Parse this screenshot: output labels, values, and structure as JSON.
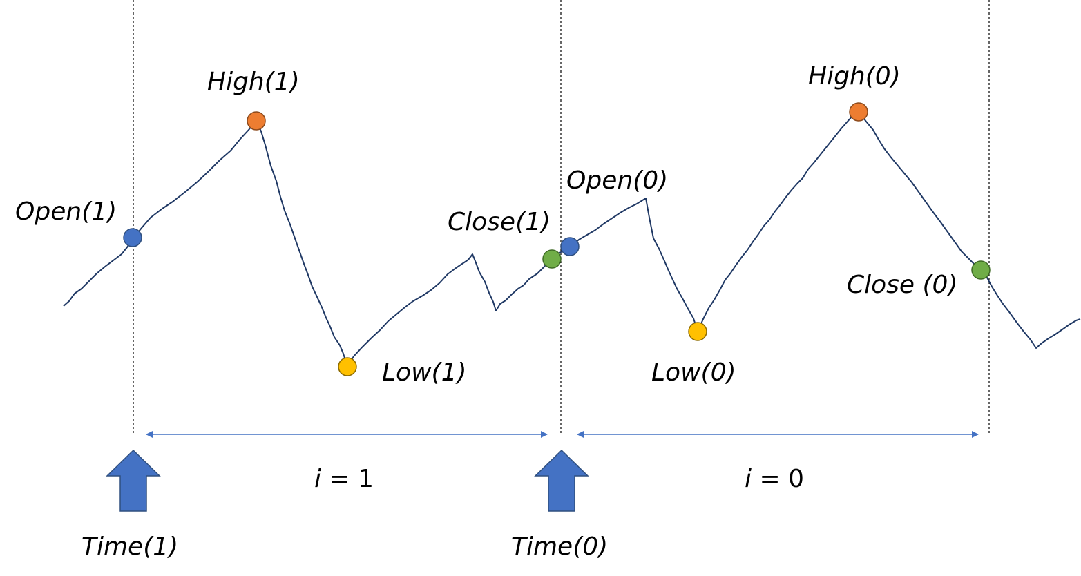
{
  "colors": {
    "price_line": "#1f3864",
    "open": "#4472c4",
    "high": "#ed7d31",
    "low": "#ffc000",
    "close": "#70ad47",
    "arrow": "#4472c4",
    "divider": "#000000"
  },
  "labels": {
    "open1": "Open(1)",
    "high1": "High(1)",
    "low1": "Low(1)",
    "close1": "Close(1)",
    "open0": "Open(0)",
    "high0": "High(0)",
    "low0": "Low(0)",
    "close0": "Close (0)",
    "time1": "Time(1)",
    "time0": "Time(0)"
  },
  "bars": [
    {
      "index_var": "i",
      "index_eq": " = 1"
    },
    {
      "index_var": "i",
      "index_eq": " = 0"
    }
  ]
}
